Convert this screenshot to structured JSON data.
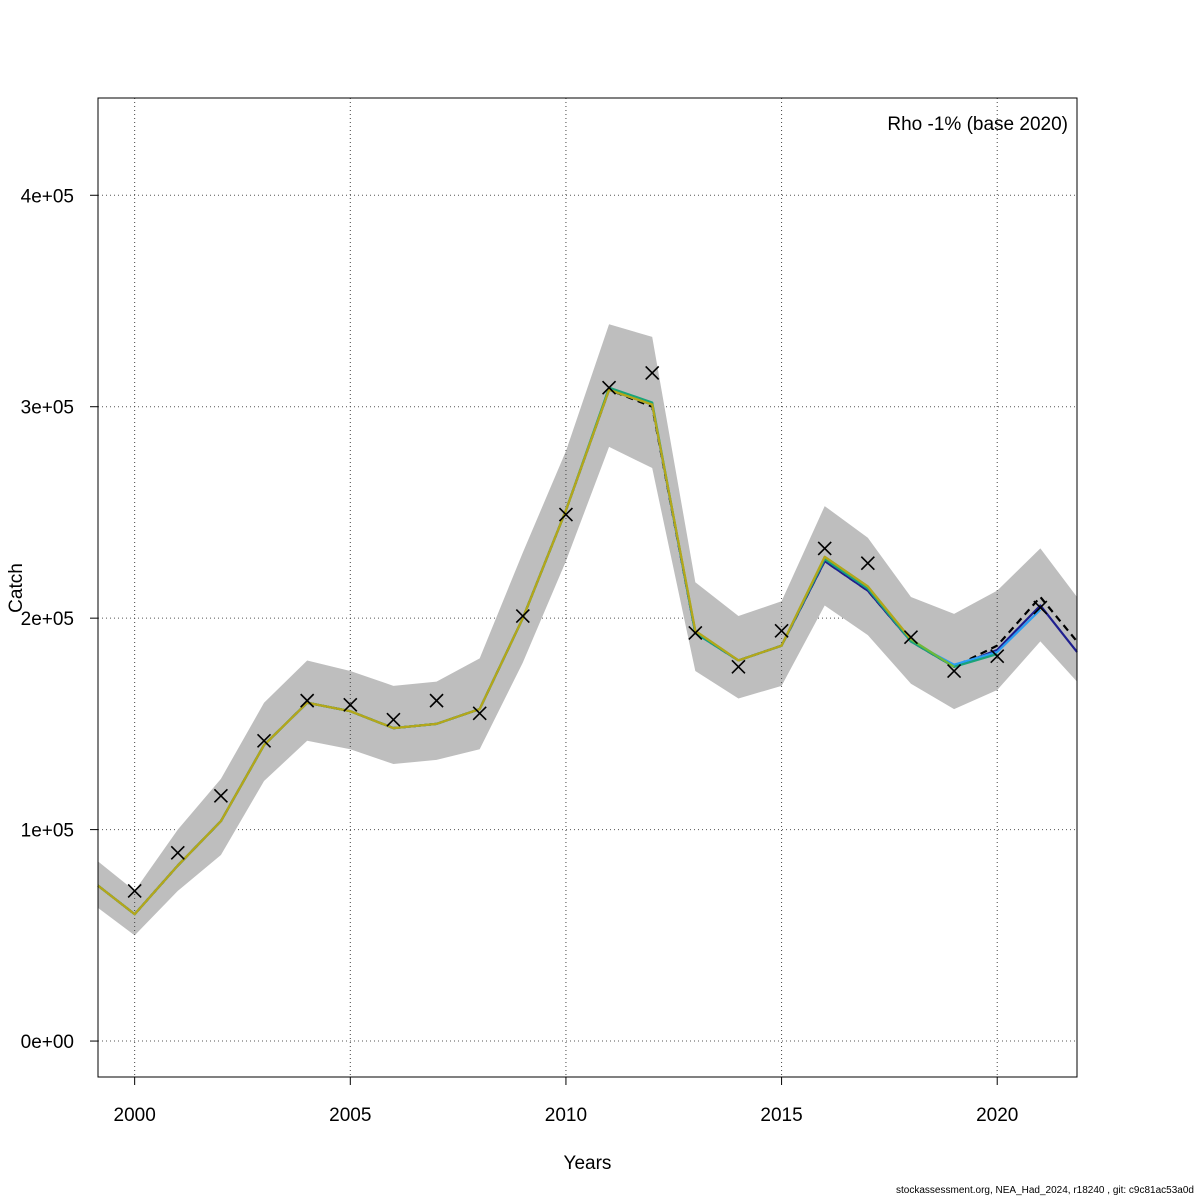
{
  "chart_data": {
    "type": "line",
    "xlabel": "Years",
    "ylabel": "Catch",
    "annotation": "Rho -1% (base 2020)",
    "xlim": [
      1999.15,
      2021.85
    ],
    "ylim": [
      -17000,
      446000
    ],
    "x_ticks": [
      2000,
      2005,
      2010,
      2015,
      2020
    ],
    "x_tick_labels": [
      "2000",
      "2005",
      "2010",
      "2015",
      "2020"
    ],
    "y_ticks": [
      0,
      100000,
      200000,
      300000,
      400000
    ],
    "y_tick_labels": [
      "0e+00",
      "1e+05",
      "2e+05",
      "3e+05",
      "4e+05"
    ],
    "grid": true,
    "confidence_band": {
      "color": "#bebebe",
      "x": [
        1999.15,
        2000,
        2001,
        2002,
        2003,
        2004,
        2005,
        2006,
        2007,
        2008,
        2009,
        2010,
        2011,
        2012,
        2013,
        2014,
        2015,
        2016,
        2017,
        2018,
        2019,
        2020,
        2021,
        2021.85
      ],
      "lower": [
        63000,
        50000,
        71000,
        88000,
        123000,
        142000,
        138000,
        131000,
        133000,
        138000,
        179000,
        227000,
        281000,
        271000,
        175000,
        162000,
        168000,
        206000,
        192000,
        169000,
        157000,
        166000,
        189000,
        170000
      ],
      "upper": [
        85000,
        71000,
        100000,
        124000,
        160000,
        180000,
        175000,
        168000,
        170000,
        181000,
        231000,
        279000,
        339000,
        333000,
        217000,
        201000,
        208000,
        253000,
        238000,
        210000,
        202000,
        213000,
        233000,
        210000
      ]
    },
    "observed": {
      "marker": "x",
      "color": "#000000",
      "x": [
        2000,
        2001,
        2002,
        2003,
        2004,
        2005,
        2006,
        2007,
        2008,
        2009,
        2010,
        2011,
        2012,
        2013,
        2014,
        2015,
        2016,
        2017,
        2018,
        2019,
        2020,
        2021
      ],
      "values": [
        71000,
        89000,
        116000,
        142000,
        161000,
        159000,
        152000,
        161000,
        155000,
        201000,
        249000,
        309000,
        316000,
        193000,
        177000,
        194000,
        233000,
        226000,
        191000,
        175000,
        182000,
        205000
      ]
    },
    "series": [
      {
        "color": "#000000",
        "dashed": true,
        "x": [
          1999.15,
          2000,
          2001,
          2002,
          2003,
          2004,
          2005,
          2006,
          2007,
          2008,
          2009,
          2010,
          2011,
          2012,
          2013,
          2014,
          2015,
          2016,
          2017,
          2018,
          2019,
          2020,
          2021,
          2021.85
        ],
        "values": [
          73500,
          60000,
          83000,
          104000,
          140000,
          160000,
          156000,
          148000,
          150000,
          157000,
          200000,
          251000,
          308000,
          300000,
          193000,
          180000,
          187000,
          227000,
          213000,
          189000,
          177000,
          187000,
          210000,
          189000
        ]
      },
      {
        "color": "#1f1f8f",
        "dashed": false,
        "x": [
          1999.15,
          2000,
          2001,
          2002,
          2003,
          2004,
          2005,
          2006,
          2007,
          2008,
          2009,
          2010,
          2011,
          2012,
          2013,
          2014,
          2015,
          2016,
          2017,
          2018,
          2019,
          2020,
          2021,
          2021.85
        ],
        "values": [
          73500,
          60000,
          83000,
          104000,
          140000,
          160000,
          156000,
          148000,
          150000,
          157000,
          200000,
          251000,
          308000,
          301000,
          193000,
          180000,
          187000,
          227000,
          213000,
          189000,
          177000,
          185000,
          206000,
          184000
        ]
      },
      {
        "color": "#2a9df4",
        "dashed": false,
        "x": [
          1999.15,
          2000,
          2001,
          2002,
          2003,
          2004,
          2005,
          2006,
          2007,
          2008,
          2009,
          2010,
          2011,
          2012,
          2013,
          2014,
          2015,
          2016,
          2017,
          2018,
          2019,
          2020,
          2021
        ],
        "values": [
          73500,
          60000,
          83000,
          104000,
          140000,
          160000,
          156000,
          148000,
          150000,
          157000,
          200000,
          251000,
          308000,
          301000,
          193000,
          180000,
          187000,
          228000,
          214000,
          189000,
          178000,
          184000,
          204000
        ]
      },
      {
        "color": "#1aa37a",
        "dashed": false,
        "x": [
          1999.15,
          2000,
          2001,
          2002,
          2003,
          2004,
          2005,
          2006,
          2007,
          2008,
          2009,
          2010,
          2011,
          2012,
          2013,
          2014,
          2015,
          2016,
          2017,
          2018,
          2019,
          2020
        ],
        "values": [
          73500,
          60000,
          83000,
          104000,
          140000,
          160000,
          156000,
          148000,
          150000,
          157000,
          200000,
          251000,
          309000,
          302000,
          193000,
          180000,
          187000,
          228000,
          214000,
          189000,
          177000,
          183000
        ]
      },
      {
        "color": "#6fb83a",
        "dashed": false,
        "x": [
          1999.15,
          2000,
          2001,
          2002,
          2003,
          2004,
          2005,
          2006,
          2007,
          2008,
          2009,
          2010,
          2011,
          2012,
          2013,
          2014,
          2015,
          2016,
          2017,
          2018,
          2019
        ],
        "values": [
          73500,
          60000,
          83000,
          104000,
          140000,
          160000,
          156000,
          148000,
          150000,
          157000,
          200000,
          251000,
          308000,
          301000,
          194000,
          180000,
          187000,
          229000,
          215000,
          190000,
          177000
        ]
      },
      {
        "color": "#b5a61a",
        "dashed": false,
        "x": [
          1999.15,
          2000,
          2001,
          2002,
          2003,
          2004,
          2005,
          2006,
          2007,
          2008,
          2009,
          2010,
          2011,
          2012,
          2013,
          2014,
          2015,
          2016,
          2017,
          2018
        ],
        "values": [
          73500,
          60000,
          83000,
          104000,
          140000,
          160000,
          156000,
          148000,
          150000,
          157000,
          200000,
          251000,
          308000,
          301000,
          194000,
          180000,
          187000,
          229000,
          215000,
          190000
        ]
      }
    ]
  },
  "footer": "stockassessment.org, NEA_Had_2024, r18240 , git: c9c81ac53a0d"
}
